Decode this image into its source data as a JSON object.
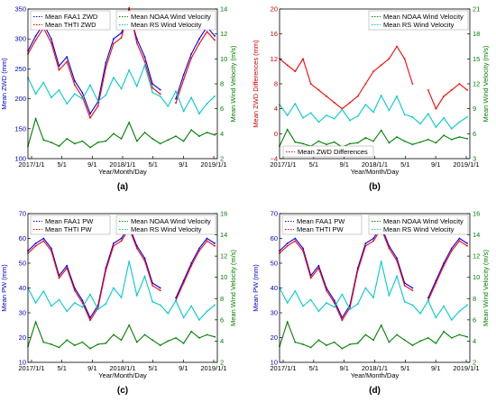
{
  "chart_data": [
    {
      "type": "line",
      "panel_label": "(a)",
      "ylabel_left": "Mean ZWD (mm)",
      "ylabel_right": "Mean Wind Velocity (m/s)",
      "xlabel": "Year/Month/Day",
      "x_ticks": [
        "2017/1/1",
        "5/1",
        "9/1",
        "2018/1/1",
        "5/1",
        "9/1",
        "2019/1/1"
      ],
      "ylim_left": [
        100,
        350
      ],
      "yticks_left": [
        "100",
        "150",
        "200",
        "250",
        "300",
        "350"
      ],
      "ylim_right": [
        2,
        14
      ],
      "yticks_right": [
        "2",
        "4",
        "6",
        "8",
        "10",
        "12",
        "14"
      ],
      "legend_left": [
        "Mean FAA1 ZWD",
        "Mean THTI ZWD"
      ],
      "legend_right": [
        "Mean NOAA Wind Velocity",
        "Mean RS Wind Velocity"
      ],
      "series": [
        {
          "name": "Mean FAA1 ZWD",
          "axis": "left",
          "color": "#0000ff",
          "x": [
            0,
            30,
            60,
            90,
            120,
            150,
            180,
            210,
            240,
            270,
            300,
            330,
            360,
            390,
            420,
            450,
            480,
            510,
            540,
            570,
            600,
            630,
            660,
            690,
            720
          ],
          "y": [
            280,
            305,
            325,
            300,
            255,
            270,
            230,
            210,
            175,
            195,
            260,
            300,
            310,
            345,
            300,
            270,
            225,
            215,
            null,
            200,
            240,
            275,
            300,
            320,
            305
          ]
        },
        {
          "name": "Mean THTI ZWD",
          "axis": "left",
          "color": "#ff0000",
          "x": [
            0,
            30,
            60,
            90,
            120,
            150,
            180,
            210,
            240,
            270,
            300,
            330,
            360,
            390,
            420,
            450,
            480,
            510,
            540,
            570,
            600,
            630,
            660,
            690,
            720
          ],
          "y": [
            275,
            298,
            318,
            293,
            248,
            262,
            223,
            203,
            168,
            188,
            252,
            292,
            302,
            352,
            293,
            262,
            218,
            208,
            null,
            193,
            232,
            268,
            292,
            312,
            298
          ]
        },
        {
          "name": "Mean NOAA Wind Velocity",
          "axis": "right",
          "color": "#008000",
          "x": [
            0,
            30,
            60,
            90,
            120,
            150,
            180,
            210,
            240,
            270,
            300,
            330,
            360,
            390,
            420,
            450,
            480,
            510,
            540,
            570,
            600,
            630,
            660,
            690,
            720
          ],
          "y": [
            3.0,
            5.2,
            3.5,
            3.3,
            3.0,
            3.6,
            3.2,
            3.4,
            2.9,
            3.3,
            3.4,
            4.0,
            3.6,
            4.9,
            3.4,
            4.1,
            3.6,
            3.2,
            3.5,
            3.8,
            3.4,
            4.3,
            3.8,
            4.1,
            3.9
          ]
        },
        {
          "name": "Mean RS Wind Velocity",
          "axis": "right",
          "color": "#00cccc",
          "x": [
            0,
            30,
            60,
            90,
            120,
            150,
            180,
            210,
            240,
            270,
            300,
            330,
            360,
            390,
            420,
            450,
            480,
            510,
            540,
            570,
            600,
            630,
            660,
            690,
            720
          ],
          "y": [
            8.5,
            7.2,
            8.1,
            6.9,
            7.5,
            6.4,
            7.2,
            6.8,
            7.9,
            6.6,
            7.1,
            8.5,
            7.6,
            9.1,
            7.8,
            9.5,
            7.3,
            7.0,
            6.2,
            7.4,
            5.8,
            6.9,
            5.6,
            6.4,
            7.0
          ]
        }
      ]
    },
    {
      "type": "line",
      "panel_label": "(b)",
      "ylabel_left": "Mean ZWD Differences (mm)",
      "ylabel_right": "Mean Wind Velocity (m/s)",
      "xlabel": "Year/Month/Day",
      "x_ticks": [
        "2017/1/1",
        "5/1",
        "9/1",
        "2018/1/1",
        "5/1",
        "9/1",
        "2019/1/1"
      ],
      "ylim_left": [
        -4,
        20
      ],
      "yticks_left": [
        "−4",
        "0",
        "4",
        "8",
        "12",
        "16",
        "20"
      ],
      "ylim_right": [
        3,
        21
      ],
      "yticks_right": [
        "3",
        "6",
        "9",
        "12",
        "15",
        "18",
        "21"
      ],
      "legend_left": [
        "Mean ZWD Differences"
      ],
      "legend_right": [
        "Mean NOAA Wind Velocity",
        "Mean RS Wind Velocity"
      ],
      "series": [
        {
          "name": "Mean ZWD Differences",
          "axis": "left",
          "color": "#ff0000",
          "x": [
            0,
            30,
            60,
            90,
            120,
            150,
            180,
            210,
            240,
            270,
            300,
            330,
            360,
            390,
            420,
            450,
            480,
            510,
            540,
            570,
            600,
            630,
            660,
            690,
            720
          ],
          "y": [
            12,
            11,
            10,
            12,
            8,
            7,
            6,
            5,
            4,
            5,
            6,
            8,
            10,
            11,
            12,
            14,
            12,
            8,
            null,
            7,
            4,
            6,
            7,
            8,
            7
          ]
        },
        {
          "name": "Mean NOAA Wind Velocity",
          "axis": "right",
          "color": "#008000",
          "x": [
            0,
            30,
            60,
            90,
            120,
            150,
            180,
            210,
            240,
            270,
            300,
            330,
            360,
            390,
            420,
            450,
            480,
            510,
            540,
            570,
            600,
            630,
            660,
            690,
            720
          ],
          "y": [
            4.5,
            6.5,
            5.0,
            4.8,
            4.5,
            5.1,
            4.7,
            5.0,
            4.4,
            4.8,
            4.9,
            5.5,
            5.1,
            6.4,
            4.9,
            5.6,
            5.1,
            4.7,
            5.0,
            5.3,
            4.9,
            5.8,
            5.3,
            5.6,
            5.4
          ]
        },
        {
          "name": "Mean RS Wind Velocity",
          "axis": "right",
          "color": "#00cccc",
          "x": [
            0,
            30,
            60,
            90,
            120,
            150,
            180,
            210,
            240,
            270,
            300,
            330,
            360,
            390,
            420,
            450,
            480,
            510,
            540,
            570,
            600,
            630,
            660,
            690,
            720
          ],
          "y": [
            9.5,
            8.2,
            9.6,
            7.9,
            8.5,
            7.4,
            8.2,
            7.8,
            8.9,
            7.6,
            8.1,
            9.5,
            8.6,
            10.6,
            8.8,
            10.5,
            8.3,
            8.0,
            7.2,
            8.4,
            6.8,
            7.9,
            6.6,
            7.4,
            8.0
          ]
        }
      ]
    },
    {
      "type": "line",
      "panel_label": "(c)",
      "ylabel_left": "Mean PW (mm)",
      "ylabel_right": "Mean Wind Velocity (m/s)",
      "xlabel": "Year/Month/Day",
      "x_ticks": [
        "2017/1/1",
        "5/1",
        "9/1",
        "2018/1/1",
        "5/1",
        "9/1",
        "2019/1/1"
      ],
      "ylim_left": [
        10,
        70
      ],
      "yticks_left": [
        "10",
        "20",
        "30",
        "40",
        "50",
        "60",
        "70"
      ],
      "ylim_right": [
        2,
        16
      ],
      "yticks_right": [
        "2",
        "4",
        "6",
        "8",
        "10",
        "12",
        "14",
        "16"
      ],
      "legend_left": [
        "Mean FAA1 PW",
        "Mean THTI PW"
      ],
      "legend_right": [
        "Mean NOAA Wind Velocity",
        "Mean RS Wind Velocity"
      ],
      "series": [
        {
          "name": "Mean FAA1 PW",
          "axis": "left",
          "color": "#0000ff",
          "x": [
            0,
            30,
            60,
            90,
            120,
            150,
            180,
            210,
            240,
            270,
            300,
            330,
            360,
            390,
            420,
            450,
            480,
            510,
            540,
            570,
            600,
            630,
            660,
            690,
            720
          ],
          "y": [
            55,
            58,
            60,
            56,
            45,
            49,
            40,
            35,
            28,
            33,
            48,
            58,
            60,
            65,
            57,
            52,
            42,
            40,
            null,
            36,
            43,
            50,
            56,
            60,
            58
          ]
        },
        {
          "name": "Mean THTI PW",
          "axis": "left",
          "color": "#ff0000",
          "x": [
            0,
            30,
            60,
            90,
            120,
            150,
            180,
            210,
            240,
            270,
            300,
            330,
            360,
            390,
            420,
            450,
            480,
            510,
            540,
            570,
            600,
            630,
            660,
            690,
            720
          ],
          "y": [
            54,
            57,
            59,
            55,
            44,
            48,
            39,
            34,
            27,
            32,
            47,
            57,
            59,
            64,
            56,
            51,
            41,
            39,
            null,
            35,
            42,
            49,
            55,
            59,
            57
          ]
        },
        {
          "name": "Mean NOAA Wind Velocity",
          "axis": "right",
          "color": "#008000",
          "x": [
            0,
            30,
            60,
            90,
            120,
            150,
            180,
            210,
            240,
            270,
            300,
            330,
            360,
            390,
            420,
            450,
            480,
            510,
            540,
            570,
            600,
            630,
            660,
            690,
            720
          ],
          "y": [
            3.5,
            5.8,
            3.9,
            3.7,
            3.4,
            4.1,
            3.6,
            3.9,
            3.3,
            3.7,
            3.8,
            4.6,
            4.1,
            5.5,
            3.9,
            4.6,
            4.1,
            3.6,
            4.0,
            4.3,
            3.8,
            4.9,
            4.3,
            4.6,
            4.4
          ]
        },
        {
          "name": "Mean RS Wind Velocity",
          "axis": "right",
          "color": "#00cccc",
          "x": [
            0,
            30,
            60,
            90,
            120,
            150,
            180,
            210,
            240,
            270,
            300,
            330,
            360,
            390,
            420,
            450,
            480,
            510,
            540,
            570,
            600,
            630,
            660,
            690,
            720
          ],
          "y": [
            9.0,
            7.6,
            8.7,
            7.3,
            7.9,
            6.8,
            7.6,
            7.2,
            8.4,
            7.0,
            7.5,
            9.0,
            8.1,
            11.5,
            8.3,
            10.1,
            7.7,
            7.4,
            6.6,
            7.8,
            6.2,
            7.3,
            6.0,
            6.8,
            7.4
          ]
        }
      ]
    },
    {
      "type": "line",
      "panel_label": "(d)",
      "ylabel_left": "Mean PW (mm)",
      "ylabel_right": "Mean Wind Velocity (m/s)",
      "xlabel": "Year/Month/Day",
      "x_ticks": [
        "2017/1/1",
        "5/1",
        "9/1",
        "2018/1/1",
        "5/1",
        "9/1",
        "2019/1/1"
      ],
      "ylim_left": [
        10,
        70
      ],
      "yticks_left": [
        "10",
        "20",
        "30",
        "40",
        "50",
        "60",
        "70"
      ],
      "ylim_right": [
        2,
        16
      ],
      "yticks_right": [
        "2",
        "4",
        "6",
        "8",
        "10",
        "12",
        "14",
        "16"
      ],
      "legend_left": [
        "Mean FAA1 PW",
        "Mean THTI PW"
      ],
      "legend_right": [
        "Mean NOAA Wind Velocity",
        "Mean RS Wind Velocity"
      ],
      "series": [
        {
          "name": "Mean FAA1 PW",
          "axis": "left",
          "color": "#0000ff",
          "x": [
            0,
            30,
            60,
            90,
            120,
            150,
            180,
            210,
            240,
            270,
            300,
            330,
            360,
            390,
            420,
            450,
            480,
            510,
            540,
            570,
            600,
            630,
            660,
            690,
            720
          ],
          "y": [
            55,
            58,
            60,
            56,
            45,
            49,
            40,
            35,
            28,
            33,
            48,
            58,
            60,
            65,
            57,
            52,
            42,
            40,
            null,
            36,
            43,
            50,
            56,
            60,
            58
          ]
        },
        {
          "name": "Mean THTI PW",
          "axis": "left",
          "color": "#ff0000",
          "x": [
            0,
            30,
            60,
            90,
            120,
            150,
            180,
            210,
            240,
            270,
            300,
            330,
            360,
            390,
            420,
            450,
            480,
            510,
            540,
            570,
            600,
            630,
            660,
            690,
            720
          ],
          "y": [
            54,
            57,
            59,
            55,
            44,
            48,
            39,
            34,
            27,
            32,
            47,
            57,
            59,
            64,
            56,
            51,
            41,
            39,
            null,
            35,
            42,
            49,
            55,
            59,
            57
          ]
        },
        {
          "name": "Mean NOAA Wind Velocity",
          "axis": "right",
          "color": "#008000",
          "x": [
            0,
            30,
            60,
            90,
            120,
            150,
            180,
            210,
            240,
            270,
            300,
            330,
            360,
            390,
            420,
            450,
            480,
            510,
            540,
            570,
            600,
            630,
            660,
            690,
            720
          ],
          "y": [
            3.5,
            5.8,
            3.9,
            3.7,
            3.4,
            4.1,
            3.6,
            3.9,
            3.3,
            3.7,
            3.8,
            4.6,
            4.1,
            5.5,
            3.9,
            4.6,
            4.1,
            3.6,
            4.0,
            4.3,
            3.8,
            4.9,
            4.3,
            4.6,
            4.4
          ]
        },
        {
          "name": "Mean RS Wind Velocity",
          "axis": "right",
          "color": "#00cccc",
          "x": [
            0,
            30,
            60,
            90,
            120,
            150,
            180,
            210,
            240,
            270,
            300,
            330,
            360,
            390,
            420,
            450,
            480,
            510,
            540,
            570,
            600,
            630,
            660,
            690,
            720
          ],
          "y": [
            9.0,
            7.6,
            8.7,
            7.3,
            7.9,
            6.8,
            7.6,
            7.2,
            8.4,
            7.0,
            7.5,
            9.0,
            8.1,
            11.5,
            8.3,
            10.1,
            7.7,
            7.4,
            6.6,
            7.8,
            6.2,
            7.3,
            6.0,
            6.8,
            7.4
          ]
        }
      ]
    }
  ]
}
